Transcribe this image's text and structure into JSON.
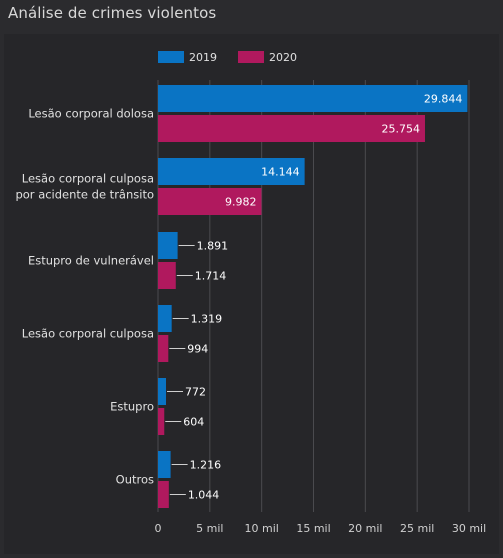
{
  "title": "Análise de crimes violentos",
  "chart_data": {
    "type": "bar",
    "orientation": "horizontal",
    "categories": [
      [
        "Lesão corporal dolosa"
      ],
      [
        "Lesão corporal culposa",
        "por acidente de trânsito"
      ],
      [
        "Estupro de vulnerável"
      ],
      [
        "Lesão corporal culposa"
      ],
      [
        "Estupro"
      ],
      [
        "Outros"
      ]
    ],
    "series": [
      {
        "name": "2019",
        "color": "#0a74c4",
        "values": [
          29844,
          14144,
          1891,
          1319,
          772,
          1216
        ],
        "labels": [
          "29.844",
          "14.144",
          "1.891",
          "1.319",
          "772",
          "1.216"
        ]
      },
      {
        "name": "2020",
        "color": "#b0195e",
        "values": [
          25754,
          9982,
          1714,
          994,
          604,
          1044
        ],
        "labels": [
          "25.754",
          "9.982",
          "1.714",
          "994",
          "604",
          "1.044"
        ]
      }
    ],
    "xlim": [
      0,
      30000
    ],
    "xticks": [
      0,
      5000,
      10000,
      15000,
      20000,
      25000,
      30000
    ],
    "xtick_labels": [
      "0",
      "5 mil",
      "10 mil",
      "15 mil",
      "20 mil",
      "25 mil",
      "30 mil"
    ],
    "grid": "vertical",
    "legend_position": "top-left"
  }
}
